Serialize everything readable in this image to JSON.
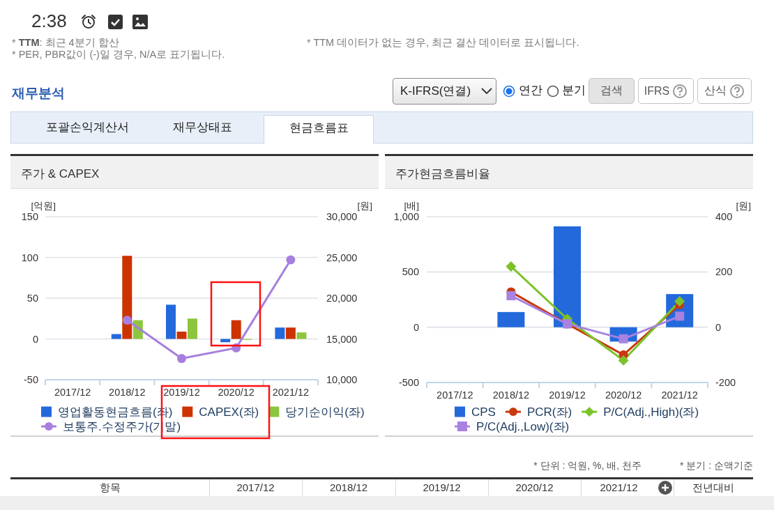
{
  "chart_data": [
    {
      "type": "other",
      "title": "재무분석",
      "annotations": [
        "2:38",
        "* **TTM**: 최근 4분기 합산",
        "* TTM 데이터가 없는 경우, 최근 결산 데이터로 표시됩니다.",
        "* PER, PBR값이 (-)일 경우, N/A로 표기됩니다.",
        "K-IFRS(연결)",
        "연간",
        "분기",
        "검색",
        "IFRS",
        "산식",
        "포괄손익계산서",
        "재무상태표",
        "현금흐름표"
      ]
    },
    {
      "type": "bar",
      "title": "주가 & CAPEX",
      "ylabel": "[억원]",
      "y2label": "[원]",
      "categories": [
        "2017/12",
        "2018/12",
        "2019/12",
        "2020/12",
        "2021/12"
      ],
      "series": [
        {
          "name": "영업활동현금흐름(좌)",
          "color": "#2369db",
          "values": [
            null,
            6,
            42,
            -4,
            14
          ]
        },
        {
          "name": "CAPEX(좌)",
          "color": "#cc3300",
          "values": [
            null,
            102,
            9,
            23,
            14
          ]
        },
        {
          "name": "당기순이익(좌)",
          "color": "#8cc63e",
          "values": [
            null,
            23,
            25,
            -1,
            8
          ]
        },
        {
          "name": "보통주.수정주가(기말)",
          "type": "line",
          "axis": "y2",
          "marker": "circle",
          "color": "#a67fde",
          "values": [
            null,
            17300,
            12600,
            13900,
            24700
          ]
        }
      ],
      "ylim": [
        -50,
        150
      ],
      "yticks": [
        -50,
        0,
        50,
        100,
        150
      ],
      "y2lim": [
        10000,
        30000
      ],
      "y2ticks": [
        {
          "value": 10000,
          "label": "10,000"
        },
        {
          "value": 15000,
          "label": "15,000"
        },
        {
          "value": 20000,
          "label": "20,000"
        },
        {
          "value": 25000,
          "label": "25,000"
        },
        {
          "value": 30000,
          "label": "30,000"
        }
      ],
      "grid": "y",
      "legend": "bottom"
    },
    {
      "type": "bar",
      "title": "주가현금흐름비율",
      "ylabel": "[배]",
      "y2label": "[원]",
      "categories": [
        "2017/12",
        "2018/12",
        "2019/12",
        "2020/12",
        "2021/12"
      ],
      "series": [
        {
          "name": "CPS",
          "axis": "y2",
          "color": "#2369db",
          "values": [
            null,
            55,
            365,
            -52,
            120
          ]
        },
        {
          "name": "PCR(좌)",
          "type": "line",
          "marker": "circle",
          "color": "#c9380f",
          "values": [
            null,
            320,
            30,
            -250,
            205
          ]
        },
        {
          "name": "P/C(Adj.,High)(좌)",
          "type": "line",
          "marker": "diamond",
          "color": "#7cc22a",
          "values": [
            null,
            550,
            75,
            -300,
            235
          ]
        },
        {
          "name": "P/C(Adj.,Low)(좌)",
          "type": "line",
          "marker": "square",
          "color": "#a882e0",
          "values": [
            null,
            285,
            30,
            -105,
            100
          ]
        }
      ],
      "ylim": [
        -500,
        1000
      ],
      "yticks": [
        -500,
        0,
        500,
        {
          "value": 1000,
          "label": "1,000"
        }
      ],
      "y2lim": [
        -200,
        400
      ],
      "y2ticks": [
        -200,
        0,
        200,
        400
      ],
      "grid": "y",
      "legend": "bottom"
    },
    {
      "type": "other",
      "annotations": [
        "* 단위 : 억원, %, 배, 천주",
        "* 분기 : 순액기준",
        "항목",
        "2017/12",
        "2018/12",
        "2019/12",
        "2020/12",
        "2021/12",
        "전년대비"
      ]
    }
  ]
}
